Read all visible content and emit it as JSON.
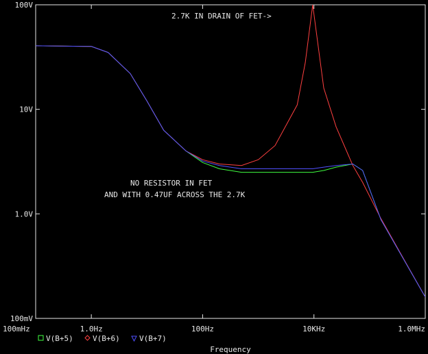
{
  "chart_data": {
    "type": "line",
    "x_label": "Frequency",
    "xscale": "log",
    "yscale": "log",
    "x": [
      0.1,
      1,
      2,
      5,
      10,
      20,
      50,
      100,
      200,
      500,
      1000,
      2000,
      5000,
      7000,
      9500,
      15000,
      25000,
      50000,
      75000,
      160000,
      1000000
    ],
    "series": [
      {
        "name": "V(B+5)",
        "color": "#40ff40",
        "marker": "square",
        "values": [
          40.5,
          40,
          35,
          22,
          12,
          6.3,
          4.0,
          3.1,
          2.7,
          2.5,
          2.5,
          2.5,
          2.5,
          2.5,
          2.5,
          2.6,
          2.8,
          3.0,
          2.6,
          0.88,
          0.16
        ]
      },
      {
        "name": "V(B+6)",
        "color": "#ff4040",
        "marker": "diamond",
        "values": [
          40.5,
          40,
          35,
          22,
          12,
          6.3,
          4.0,
          3.3,
          3.0,
          2.9,
          3.3,
          4.5,
          11,
          28,
          100,
          16,
          6.8,
          2.9,
          2.0,
          0.9,
          0.16
        ]
      },
      {
        "name": "V(B+7)",
        "color": "#5050ff",
        "marker": "triangle",
        "values": [
          40.5,
          40,
          35,
          22,
          12,
          6.3,
          4.0,
          3.2,
          2.9,
          2.7,
          2.7,
          2.7,
          2.7,
          2.7,
          2.7,
          2.8,
          2.9,
          3.0,
          2.6,
          0.88,
          0.16
        ]
      }
    ],
    "xlim": [
      0.1,
      1000000
    ],
    "ylim": [
      0.1,
      100
    ],
    "xticks": [
      {
        "value": 0.1,
        "label": "100mHz"
      },
      {
        "value": 1,
        "label": "1.0Hz"
      },
      {
        "value": 100,
        "label": "100Hz"
      },
      {
        "value": 10000,
        "label": "10KHz"
      },
      {
        "value": 1000000,
        "label": "1.0MHz"
      }
    ],
    "yticks": [
      {
        "value": 100,
        "label": "100V"
      },
      {
        "value": 10,
        "label": "10V"
      },
      {
        "value": 1,
        "label": "1.0V"
      },
      {
        "value": 0.1,
        "label": "100mV"
      }
    ],
    "annotations": [
      "2.7K IN DRAIN OF FET->",
      "NO RESISTOR IN FET",
      "AND WITH 0.47UF ACROSS THE 2.7K"
    ],
    "legend": "bottom-left"
  }
}
